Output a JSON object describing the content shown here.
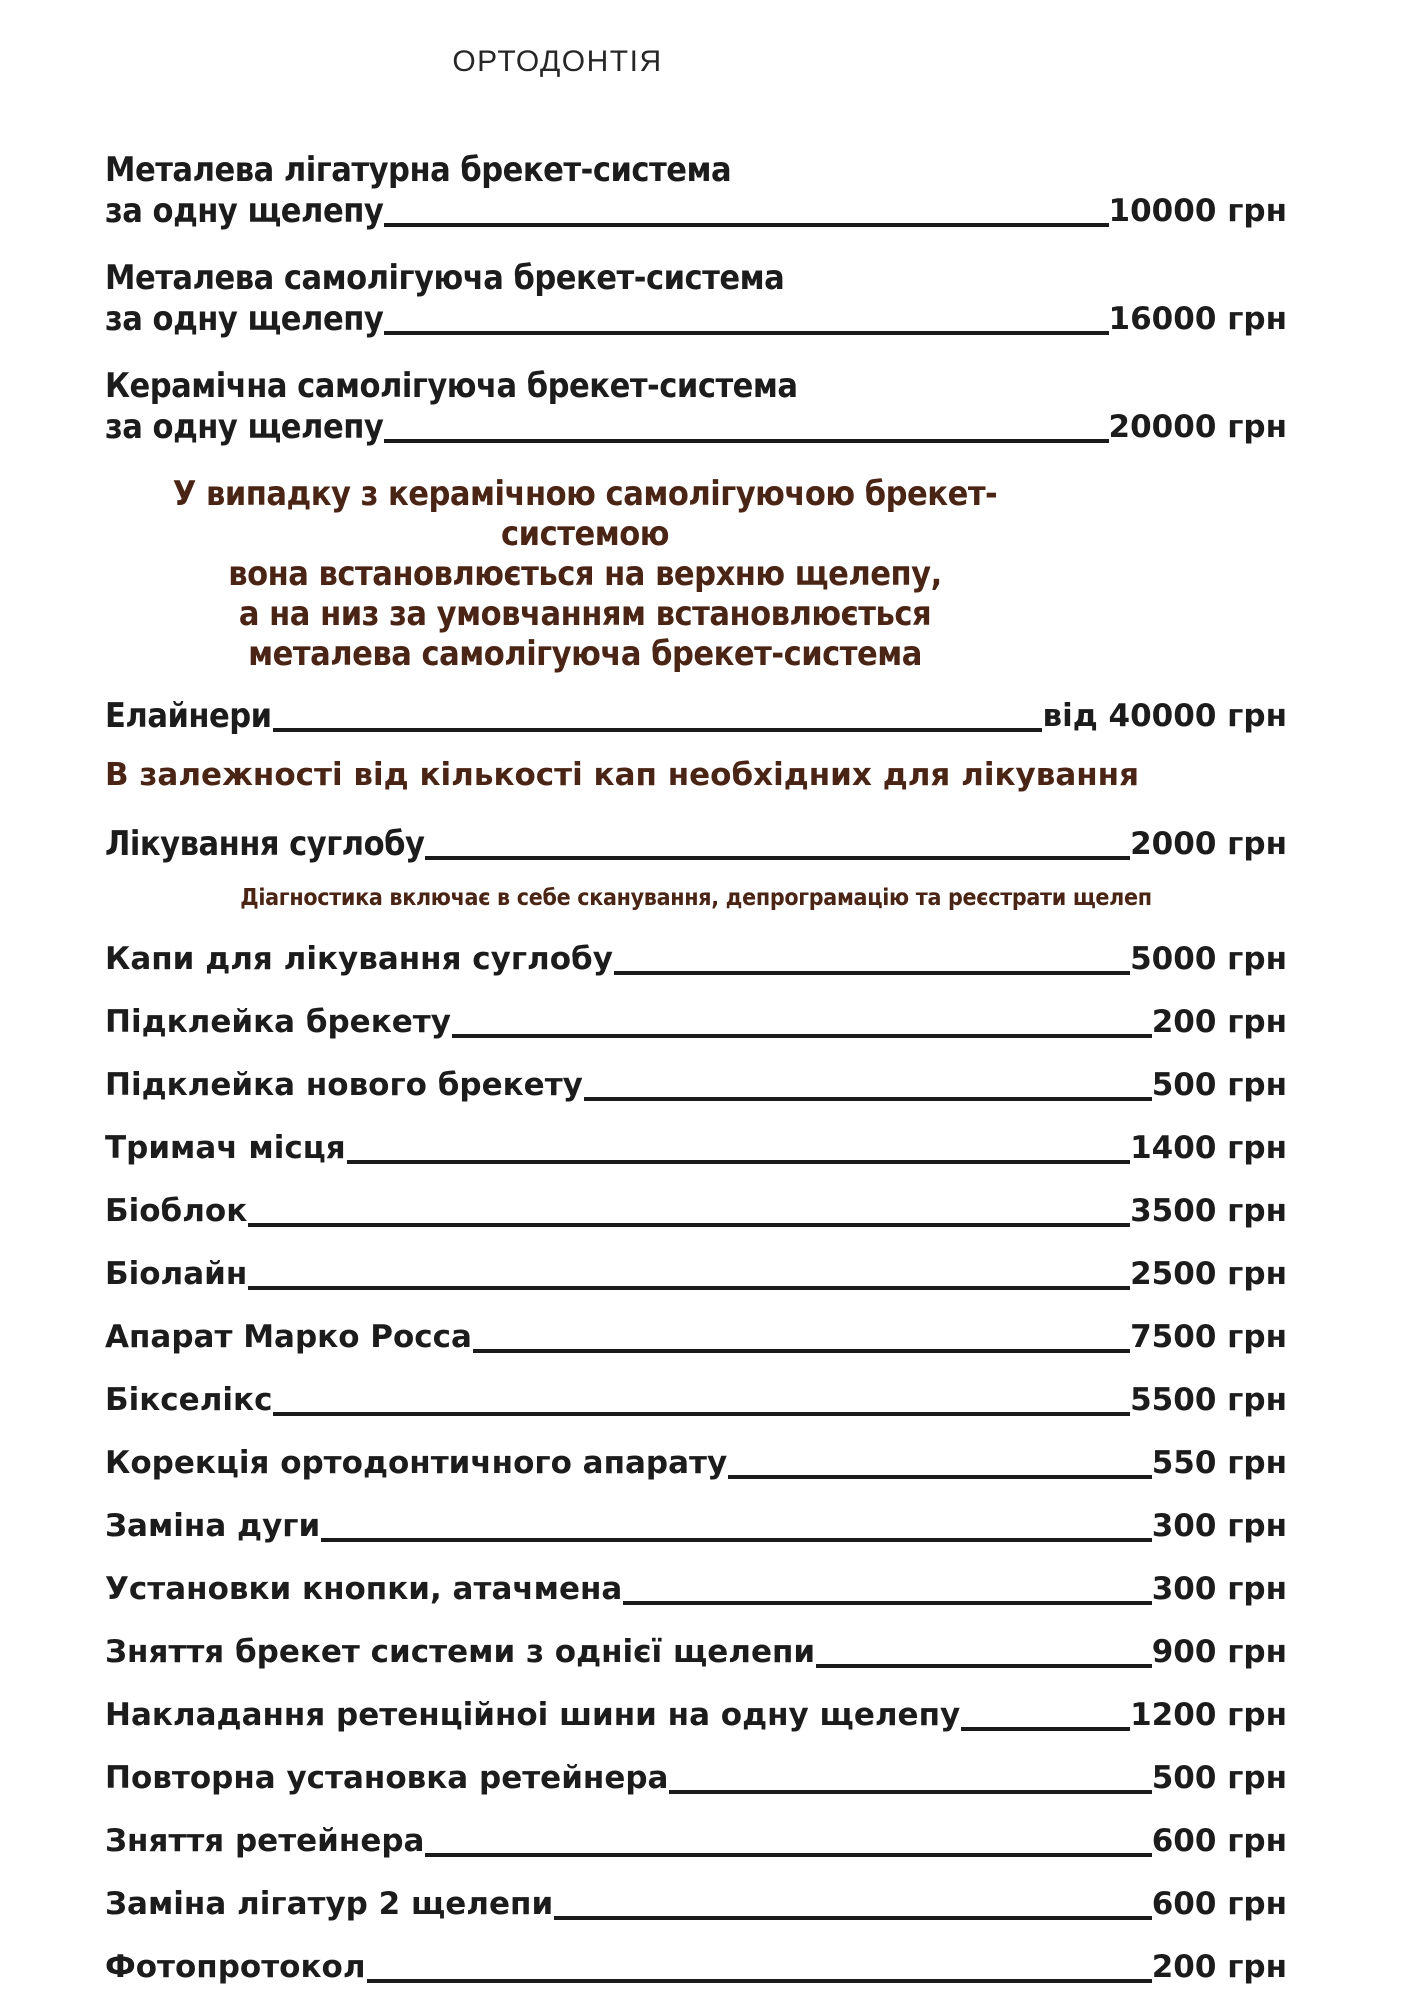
{
  "title": "ОРТОДОНТІЯ",
  "colors": {
    "text": "#1c1c1c",
    "accent_brown": "#4a2415",
    "background": "#ffffff",
    "leader_line": "#1b1b1b"
  },
  "rows": [
    {
      "type": "item2",
      "line1": "Металева лігатурна брекет-система",
      "line2": "за одну щелепу",
      "price": "10000 грн"
    },
    {
      "type": "item2",
      "line1": "Металева самолігуюча брекет-система",
      "line2": "за одну щелепу",
      "price": "16000 грн"
    },
    {
      "type": "item2",
      "line1": "Керамічна самолігуюча брекет-система",
      "line2": "за одну щелепу",
      "price": "20000 грн"
    },
    {
      "type": "note-center",
      "lines": [
        "У випадку з керамічною самолігуючою брекет-системою",
        "вона встановлюється на верхню щелепу,",
        "а на низ за умовчанням встановлюється",
        "металева самолігуюча брекет-система"
      ]
    },
    {
      "type": "item-cond",
      "label": "Елайнери",
      "price": "від 40000 грн",
      "tight": true
    },
    {
      "type": "note-wide",
      "text": "В залежності від кількості кап необхідних для лікування"
    },
    {
      "type": "item-cond",
      "label": "Лікування суглобу",
      "price": "2000 грн",
      "tight": true
    },
    {
      "type": "note-small",
      "text": "Діагностика включає в себе сканування, депрограмацію та реєстрати щелеп"
    },
    {
      "type": "item",
      "label": "Капи для лікування суглобу",
      "price": "5000 грн"
    },
    {
      "type": "item",
      "label": "Підклейка брекету",
      "price": "200 грн"
    },
    {
      "type": "item",
      "label": "Підклейка нового брекету",
      "price": "500 грн"
    },
    {
      "type": "item",
      "label": "Тримач місця",
      "price": "1400 грн"
    },
    {
      "type": "item",
      "label": "Біоблок",
      "price": "3500 грн"
    },
    {
      "type": "item",
      "label": "Біолайн",
      "price": "2500 грн"
    },
    {
      "type": "item",
      "label": "Апарат Марко Росса",
      "price": "7500 грн"
    },
    {
      "type": "item",
      "label": "Бікселікс",
      "price": "5500 грн"
    },
    {
      "type": "item",
      "label": "Корекція ортодонтичного апарату",
      "price": "550 грн"
    },
    {
      "type": "item",
      "label": "Заміна дуги",
      "price": "300 грн"
    },
    {
      "type": "item",
      "label": "Установки кнопки, атачмена",
      "price": "300 грн"
    },
    {
      "type": "item",
      "label": "Зняття брекет системи з однієї щелепи",
      "price": "900 грн"
    },
    {
      "type": "item",
      "label": "Накладання ретенційноі шини на одну щелепу",
      "price": "1200 грн"
    },
    {
      "type": "item",
      "label": "Повторна установка ретейнера",
      "price": "500 грн"
    },
    {
      "type": "item",
      "label": "Зняття ретейнера",
      "price": "600 грн"
    },
    {
      "type": "item",
      "label": "Заміна лігатур 2 щелепи",
      "price": "600 грн"
    },
    {
      "type": "item",
      "label": "Фотопротокол",
      "price": "200 грн"
    }
  ]
}
